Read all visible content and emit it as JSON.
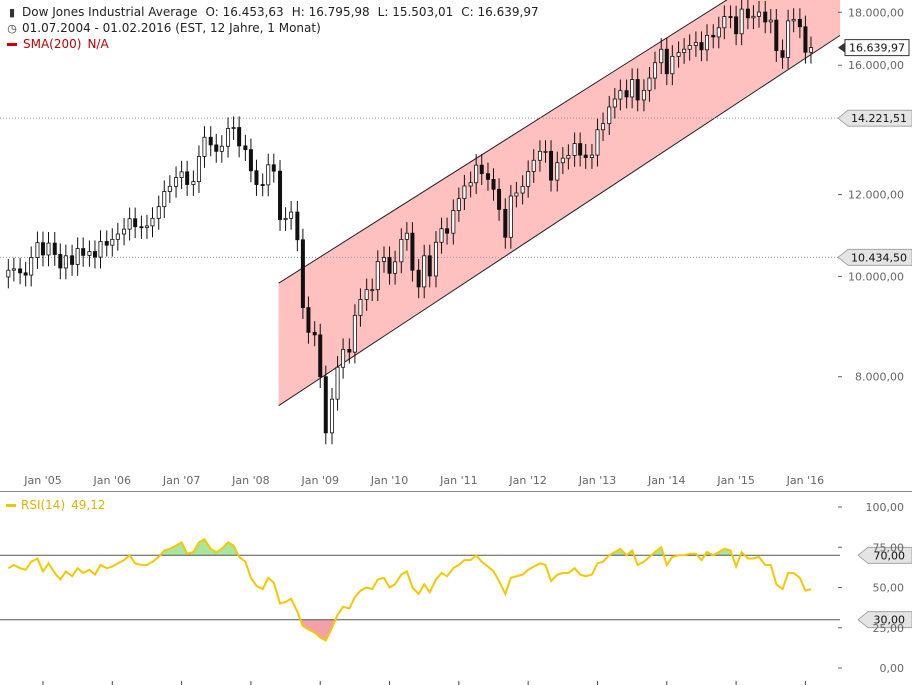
{
  "header": {
    "title": "Dow Jones Industrial Average",
    "open": "O: 16.453,63",
    "high": "H: 16.795,98",
    "low": "L: 15.503,01",
    "close": "C: 16.639,97",
    "period": "01.07.2004 - 01.02.2016 (EST, 12 Jahre, 1 Monat)",
    "sma_label": "SMA(200)",
    "sma_value": "N/A",
    "rsi_label": "RSI(14)",
    "rsi_value": "49,12",
    "chart_icon": "bar-chart-icon",
    "clock_icon": "clock-icon"
  },
  "colors": {
    "channel_fill": "#ffc0c0",
    "rsi_line": "#f5c800",
    "rsi_overbought_fill": "#a8e6a0",
    "rsi_oversold_fill": "#f4a0a8",
    "sma": "#d00000"
  },
  "chart_data": [
    {
      "type": "candlestick",
      "title": "Dow Jones Industrial Average",
      "x_ticks": [
        "Jan '05",
        "Jan '06",
        "Jan '07",
        "Jan '08",
        "Jan '09",
        "Jan '10",
        "Jan '11",
        "Jan '12",
        "Jan '13",
        "Jan '14",
        "Jan '15",
        "Jan '16"
      ],
      "y_ticks": [
        "8.000,00",
        "10.000,00",
        "12.000,00",
        "16.000,00",
        "18.000,00"
      ],
      "ylim": [
        6500,
        18500
      ],
      "y_scale": "log",
      "price_markers": [
        {
          "label": "16.639,97",
          "value": 16639.97,
          "style": "box"
        },
        {
          "label": "14.221,51",
          "value": 14221.51,
          "style": "tag"
        },
        {
          "label": "10.434,50",
          "value": 10434.5,
          "style": "tag"
        }
      ],
      "channel": {
        "lower": [
          [
            2008.4,
            7500
          ],
          [
            2016.5,
            17100
          ]
        ],
        "upper": [
          [
            2008.4,
            9850
          ],
          [
            2016.5,
            21700
          ]
        ]
      },
      "x": [
        2004.5,
        2004.58,
        2004.67,
        2004.75,
        2004.83,
        2004.92,
        2005.0,
        2005.08,
        2005.17,
        2005.25,
        2005.33,
        2005.42,
        2005.5,
        2005.58,
        2005.67,
        2005.75,
        2005.83,
        2005.92,
        2006.0,
        2006.08,
        2006.17,
        2006.25,
        2006.33,
        2006.42,
        2006.5,
        2006.58,
        2006.67,
        2006.75,
        2006.83,
        2006.92,
        2007.0,
        2007.08,
        2007.17,
        2007.25,
        2007.33,
        2007.42,
        2007.5,
        2007.58,
        2007.67,
        2007.75,
        2007.83,
        2007.92,
        2008.0,
        2008.08,
        2008.17,
        2008.25,
        2008.33,
        2008.42,
        2008.5,
        2008.58,
        2008.67,
        2008.75,
        2008.83,
        2008.92,
        2009.0,
        2009.08,
        2009.17,
        2009.25,
        2009.33,
        2009.42,
        2009.5,
        2009.58,
        2009.67,
        2009.75,
        2009.83,
        2009.92,
        2010.0,
        2010.08,
        2010.17,
        2010.25,
        2010.33,
        2010.42,
        2010.5,
        2010.58,
        2010.67,
        2010.75,
        2010.83,
        2010.92,
        2011.0,
        2011.08,
        2011.17,
        2011.25,
        2011.33,
        2011.42,
        2011.5,
        2011.58,
        2011.67,
        2011.75,
        2011.83,
        2011.92,
        2012.0,
        2012.08,
        2012.17,
        2012.25,
        2012.33,
        2012.42,
        2012.5,
        2012.58,
        2012.67,
        2012.75,
        2012.83,
        2012.92,
        2013.0,
        2013.08,
        2013.17,
        2013.25,
        2013.33,
        2013.42,
        2013.5,
        2013.58,
        2013.67,
        2013.75,
        2013.83,
        2013.92,
        2014.0,
        2014.08,
        2014.17,
        2014.25,
        2014.33,
        2014.42,
        2014.5,
        2014.58,
        2014.67,
        2014.75,
        2014.83,
        2014.92,
        2015.0,
        2015.08,
        2015.17,
        2015.25,
        2015.33,
        2015.42,
        2015.5,
        2015.58,
        2015.67,
        2015.75,
        2015.83,
        2015.92,
        2016.0,
        2016.08
      ],
      "close": [
        10140,
        10170,
        10080,
        10030,
        10430,
        10780,
        10490,
        10770,
        10500,
        10190,
        10470,
        10270,
        10640,
        10480,
        10570,
        10440,
        10810,
        10720,
        10860,
        10990,
        11110,
        11370,
        11170,
        11150,
        11190,
        11380,
        11680,
        12080,
        12220,
        12460,
        12620,
        12270,
        12350,
        13060,
        13630,
        13400,
        13210,
        13360,
        13900,
        13930,
        13370,
        13260,
        12650,
        12270,
        12260,
        12820,
        12640,
        11350,
        11380,
        11540,
        10850,
        9330,
        8830,
        8780,
        8000,
        7060,
        7610,
        8170,
        8500,
        8450,
        9170,
        9500,
        9710,
        9710,
        10340,
        10430,
        10070,
        10330,
        10860,
        11010,
        10140,
        9770,
        10470,
        10010,
        10790,
        11120,
        11010,
        11580,
        11890,
        12230,
        12320,
        12810,
        12570,
        12410,
        12140,
        11610,
        10910,
        11960,
        12040,
        12220,
        12630,
        12950,
        13210,
        13210,
        12390,
        12880,
        13010,
        13090,
        13440,
        13100,
        13030,
        13100,
        13860,
        14050,
        14580,
        14840,
        15120,
        14910,
        15500,
        14810,
        15130,
        15550,
        16090,
        16580,
        15700,
        16320,
        16460,
        16580,
        16720,
        16830,
        16560,
        17100,
        17040,
        17390,
        17830,
        17820,
        17160,
        18130,
        17780,
        17840,
        18010,
        17620,
        17690,
        16530,
        16280,
        17660,
        17720,
        17430,
        16470,
        16640
      ]
    },
    {
      "type": "line",
      "title": "RSI(14)",
      "series": [
        {
          "name": "RSI(14)"
        }
      ],
      "y_ticks": [
        "0,00",
        "25,00",
        "50,00",
        "75,00",
        "100,00"
      ],
      "ylim": [
        0,
        100
      ],
      "levels": [
        {
          "label": "70,00",
          "value": 70
        },
        {
          "label": "30,00",
          "value": 30
        }
      ],
      "x": [
        2004.5,
        2004.58,
        2004.67,
        2004.75,
        2004.83,
        2004.92,
        2005.0,
        2005.08,
        2005.17,
        2005.25,
        2005.33,
        2005.42,
        2005.5,
        2005.58,
        2005.67,
        2005.75,
        2005.83,
        2005.92,
        2006.0,
        2006.08,
        2006.17,
        2006.25,
        2006.33,
        2006.42,
        2006.5,
        2006.58,
        2006.67,
        2006.75,
        2006.83,
        2006.92,
        2007.0,
        2007.08,
        2007.17,
        2007.25,
        2007.33,
        2007.42,
        2007.5,
        2007.58,
        2007.67,
        2007.75,
        2007.83,
        2007.92,
        2008.0,
        2008.08,
        2008.17,
        2008.25,
        2008.33,
        2008.42,
        2008.5,
        2008.58,
        2008.67,
        2008.75,
        2008.83,
        2008.92,
        2009.0,
        2009.08,
        2009.17,
        2009.25,
        2009.33,
        2009.42,
        2009.5,
        2009.58,
        2009.67,
        2009.75,
        2009.83,
        2009.92,
        2010.0,
        2010.08,
        2010.17,
        2010.25,
        2010.33,
        2010.42,
        2010.5,
        2010.58,
        2010.67,
        2010.75,
        2010.83,
        2010.92,
        2011.0,
        2011.08,
        2011.17,
        2011.25,
        2011.33,
        2011.42,
        2011.5,
        2011.58,
        2011.67,
        2011.75,
        2011.83,
        2011.92,
        2012.0,
        2012.08,
        2012.17,
        2012.25,
        2012.33,
        2012.42,
        2012.5,
        2012.58,
        2012.67,
        2012.75,
        2012.83,
        2012.92,
        2013.0,
        2013.08,
        2013.17,
        2013.25,
        2013.33,
        2013.42,
        2013.5,
        2013.58,
        2013.67,
        2013.75,
        2013.83,
        2013.92,
        2014.0,
        2014.08,
        2014.17,
        2014.25,
        2014.33,
        2014.42,
        2014.5,
        2014.58,
        2014.67,
        2014.75,
        2014.83,
        2014.92,
        2015.0,
        2015.08,
        2015.17,
        2015.25,
        2015.33,
        2015.42,
        2015.5,
        2015.58,
        2015.67,
        2015.75,
        2015.83,
        2015.92,
        2016.0,
        2016.08
      ],
      "values": [
        62,
        64,
        62,
        61,
        66,
        68,
        60,
        65,
        59,
        55,
        60,
        57,
        62,
        59,
        61,
        58,
        64,
        62,
        63,
        65,
        67,
        70,
        65,
        64,
        64,
        66,
        69,
        73,
        74,
        76,
        78,
        71,
        72,
        78,
        80,
        74,
        72,
        74,
        78,
        76,
        69,
        66,
        56,
        51,
        49,
        56,
        53,
        40,
        41,
        43,
        35,
        26,
        24,
        22,
        19,
        17,
        25,
        33,
        38,
        37,
        44,
        48,
        50,
        49,
        55,
        56,
        50,
        52,
        58,
        60,
        50,
        46,
        52,
        47,
        55,
        59,
        57,
        62,
        64,
        67,
        67,
        70,
        66,
        63,
        60,
        54,
        46,
        56,
        57,
        58,
        61,
        63,
        65,
        64,
        54,
        58,
        59,
        59,
        62,
        58,
        57,
        58,
        65,
        66,
        70,
        72,
        74,
        70,
        73,
        64,
        66,
        69,
        72,
        75,
        64,
        69,
        70,
        70,
        71,
        71,
        67,
        72,
        70,
        72,
        74,
        73,
        63,
        72,
        68,
        68,
        69,
        64,
        64,
        52,
        49,
        59,
        59,
        56,
        48,
        49
      ]
    }
  ]
}
